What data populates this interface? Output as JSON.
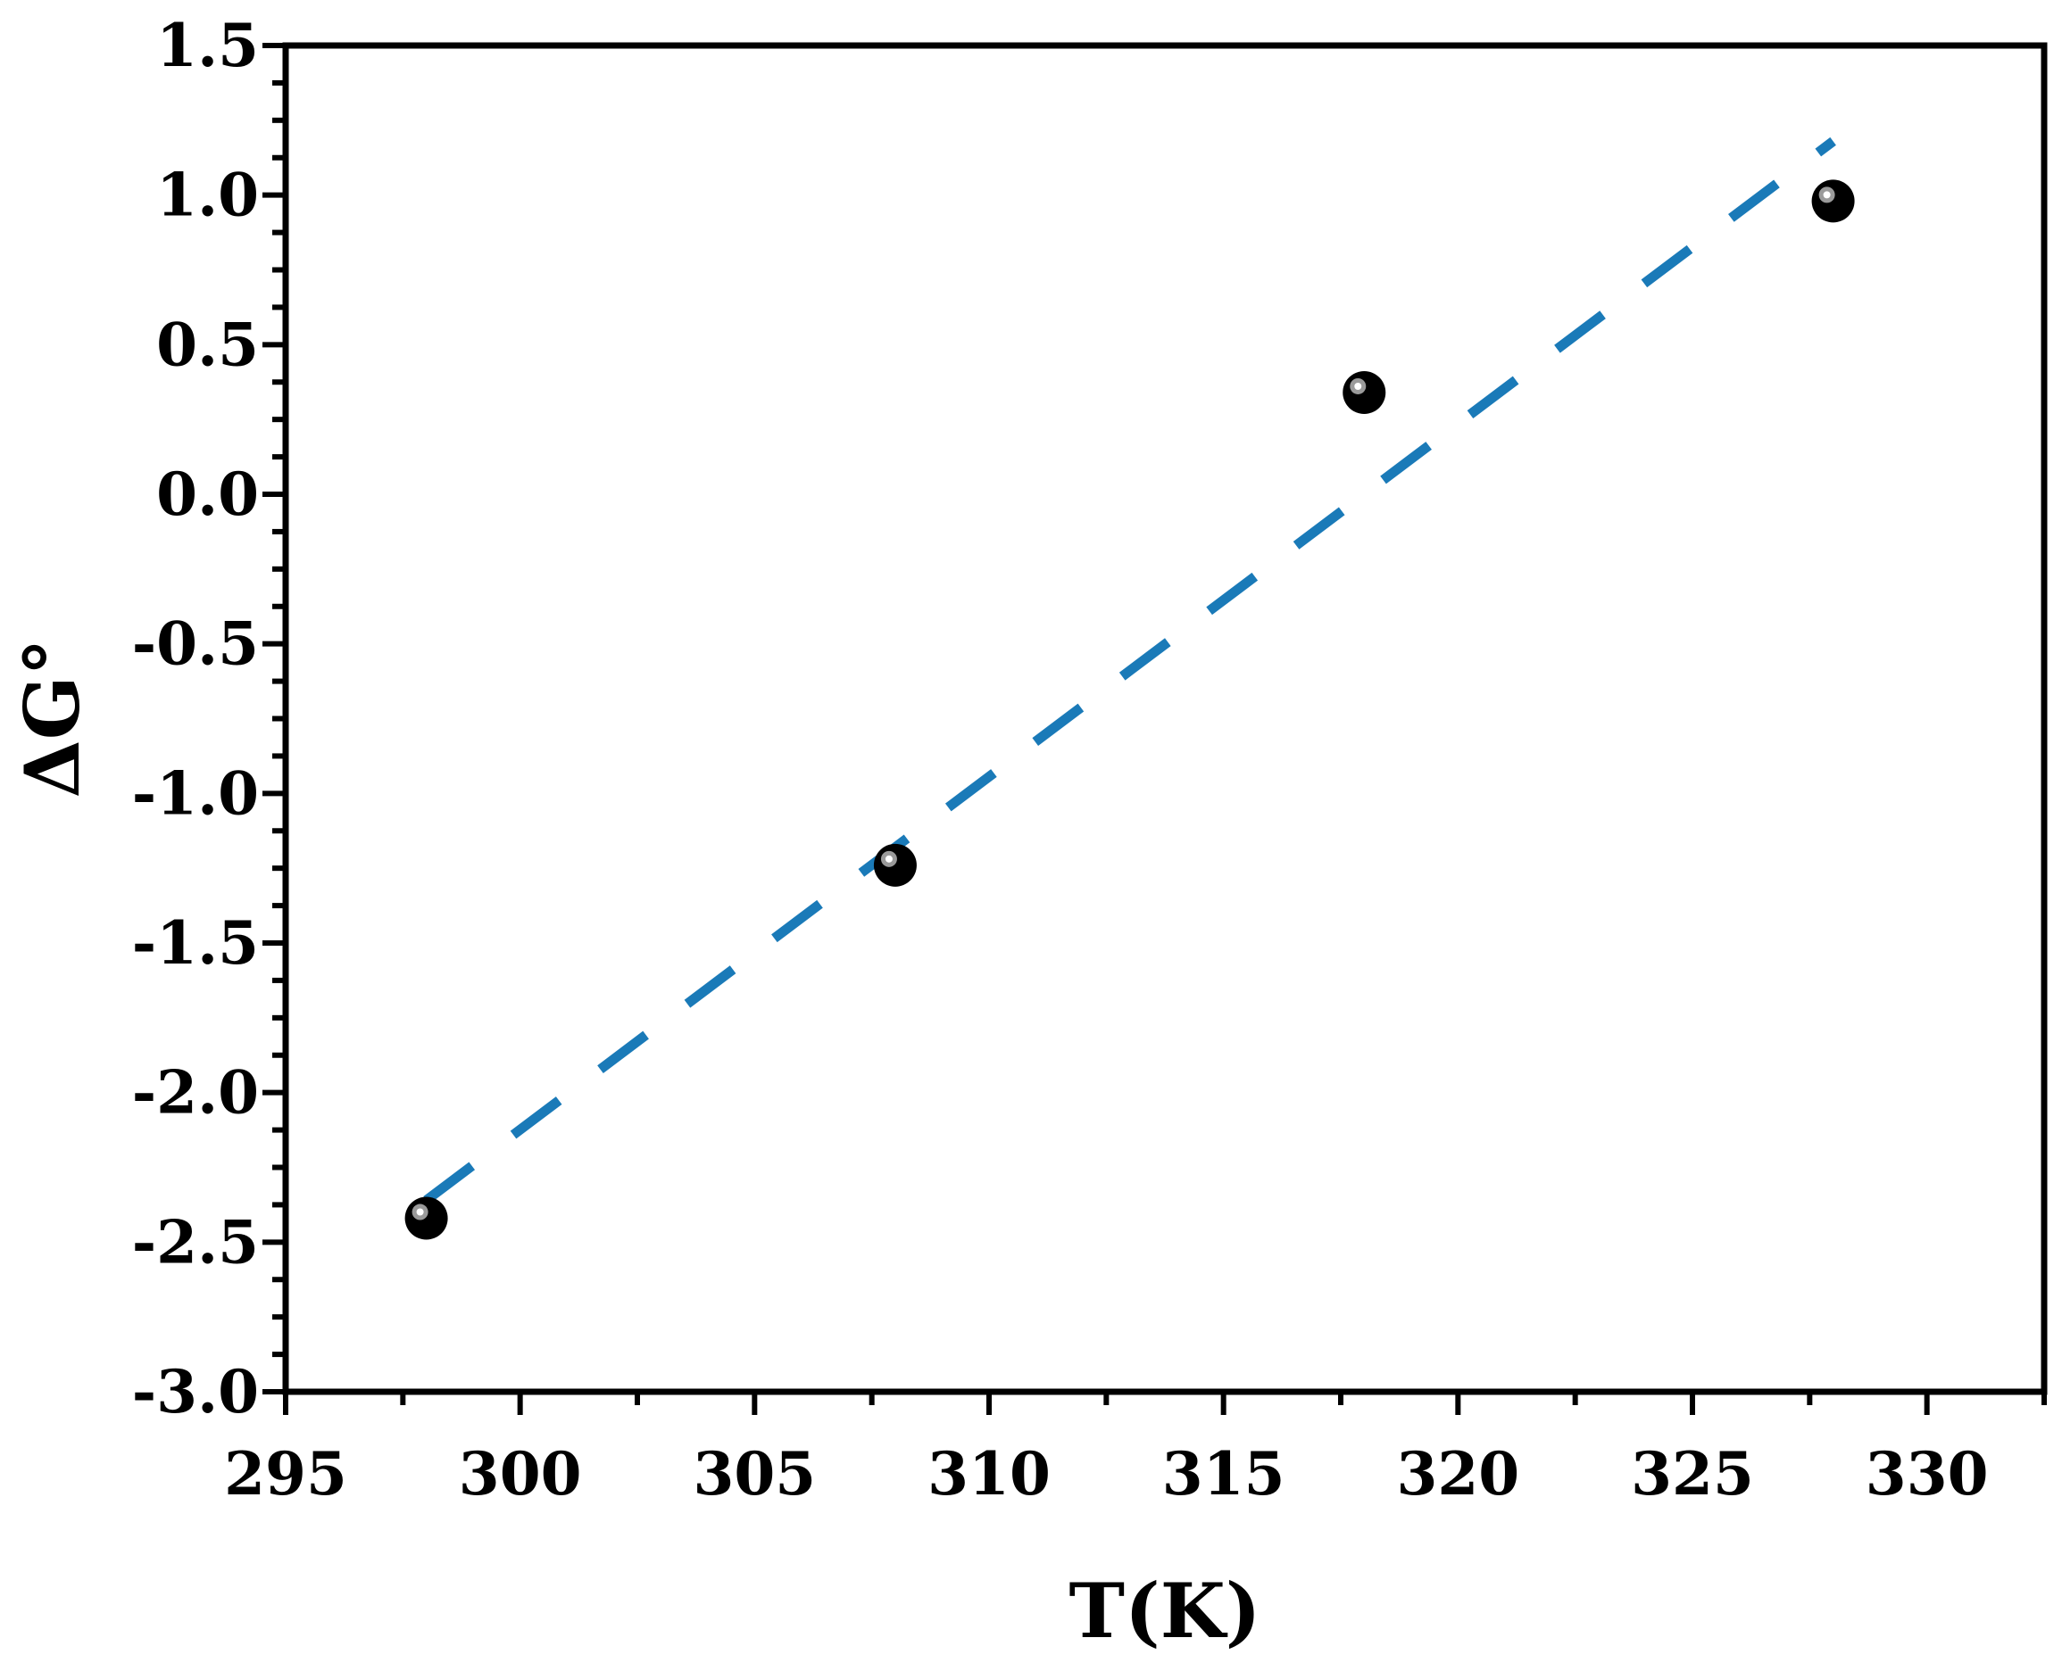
{
  "chart_data": {
    "type": "scatter",
    "xlabel": "T(K)",
    "ylabel": "ΔG°",
    "xlim": [
      295,
      332.5
    ],
    "ylim": [
      -3.0,
      1.5
    ],
    "xticks": [
      295,
      300,
      305,
      310,
      315,
      320,
      325,
      330
    ],
    "xtick_labels": [
      "295",
      "300",
      "305",
      "310",
      "315",
      "320",
      "325",
      "330"
    ],
    "yticks": [
      -3.0,
      -2.5,
      -2.0,
      -1.5,
      -1.0,
      -0.5,
      0.0,
      0.5,
      1.0,
      1.5
    ],
    "ytick_labels": [
      "-3.0",
      "-2.5",
      "-2.0",
      "-1.5",
      "-1.0",
      "-0.5",
      "0.0",
      "0.5",
      "1.0",
      "1.5"
    ],
    "grid": false,
    "legend": "none",
    "series": [
      {
        "kind": "points",
        "x": [
          298,
          308,
          318,
          328
        ],
        "y": [
          -2.42,
          -1.24,
          0.34,
          0.98
        ],
        "color": "#000000"
      },
      {
        "kind": "fit-line",
        "style": "dashed",
        "x": [
          298,
          328
        ],
        "y": [
          -2.36,
          1.18
        ],
        "color": "#1a7ab8"
      }
    ]
  }
}
